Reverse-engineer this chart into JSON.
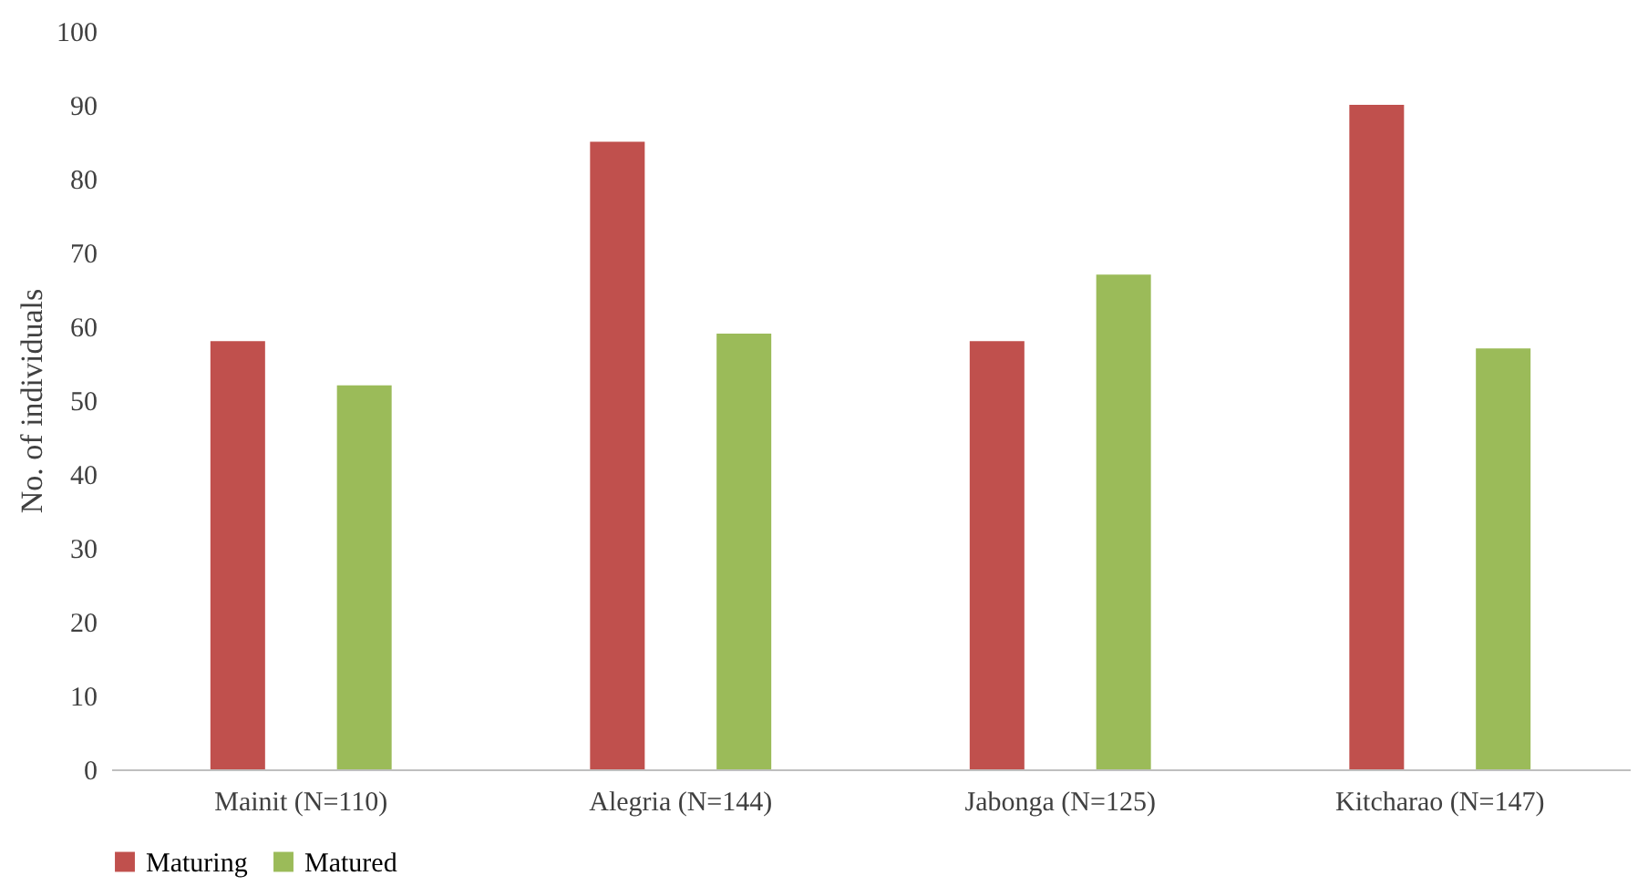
{
  "chart_data": {
    "type": "bar",
    "ylabel": "No. of individuals",
    "categories": [
      "Mainit (N=110)",
      "Alegria (N=144)",
      "Jabonga (N=125)",
      "Kitcharao (N=147)"
    ],
    "series": [
      {
        "name": "Maturing",
        "color": "#c0504d",
        "values": [
          58,
          85,
          58,
          90
        ]
      },
      {
        "name": "Matured",
        "color": "#9bbb59",
        "values": [
          52,
          59,
          67,
          57
        ]
      }
    ],
    "ylim": [
      0,
      100
    ],
    "yticks": [
      0,
      10,
      20,
      30,
      40,
      50,
      60,
      70,
      80,
      90,
      100
    ],
    "grid": false,
    "legend": "bottom"
  }
}
